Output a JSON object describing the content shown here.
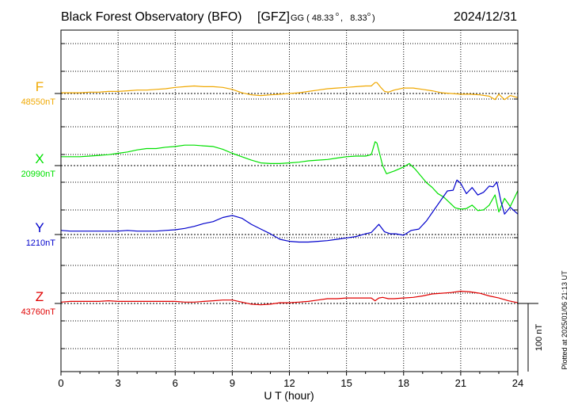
{
  "chart_data": {
    "type": "line",
    "title": "Black Forest Observatory (BFO)",
    "agency": "[GFZ]",
    "coords_prefix": "GG ( 48.33",
    "coords_mid": ",   8.33",
    "coords_suffix": ")",
    "degree_symbol": "o",
    "date": "2024/12/31",
    "xlabel": "U T (hour)",
    "xlim": [
      0,
      24
    ],
    "xticks": [
      "0",
      "3",
      "6",
      "9",
      "12",
      "15",
      "18",
      "21",
      "24"
    ],
    "scale_label": "100 nT",
    "scale_nT": 100,
    "plotted_note": "Plotted at 2025/01/06 21:13 UT",
    "series": [
      {
        "name": "F",
        "base_label": "48550nT",
        "baseline_nT": 48550,
        "color": "#f0a800",
        "hours": [
          0,
          0.5,
          1,
          1.5,
          2,
          2.5,
          3,
          3.5,
          4,
          4.5,
          5,
          5.5,
          6,
          6.5,
          7,
          7.5,
          8,
          8.5,
          9,
          9.5,
          10,
          10.5,
          11,
          11.5,
          12,
          12.5,
          13,
          13.5,
          14,
          14.5,
          15,
          15.5,
          16,
          16.3,
          16.5,
          16.6,
          16.8,
          17,
          17.2,
          17.5,
          18,
          18.5,
          19,
          19.5,
          20,
          20.5,
          21,
          21.5,
          22,
          22.5,
          22.8,
          23,
          23.3,
          23.6,
          24
        ],
        "values": [
          48551,
          48551,
          48551,
          48552,
          48552,
          48553,
          48553,
          48554,
          48555,
          48555,
          48556,
          48557,
          48559,
          48560,
          48561,
          48560,
          48560,
          48559,
          48556,
          48551,
          48548,
          48547,
          48548,
          48549,
          48550,
          48551,
          48553,
          48555,
          48557,
          48558,
          48559,
          48560,
          48561,
          48561,
          48566,
          48566,
          48559,
          48553,
          48552,
          48555,
          48558,
          48558,
          48556,
          48554,
          48551,
          48550,
          48549,
          48549,
          48548,
          48546,
          48541,
          48549,
          48541,
          48547,
          48544
        ]
      },
      {
        "name": "X",
        "base_label": "20990nT",
        "baseline_nT": 20990,
        "color": "#00e000",
        "hours": [
          0,
          0.5,
          1,
          1.5,
          2,
          2.5,
          3,
          3.5,
          4,
          4.5,
          5,
          5.5,
          6,
          6.5,
          7,
          7.5,
          8,
          8.5,
          9,
          9.5,
          10,
          10.5,
          11,
          11.5,
          12,
          12.5,
          13,
          13.5,
          14,
          14.5,
          15,
          15.5,
          16,
          16.3,
          16.5,
          16.6,
          16.7,
          16.9,
          17.1,
          17.5,
          18,
          18.3,
          18.6,
          18.9,
          19.2,
          19.5,
          19.8,
          20.1,
          20.4,
          20.7,
          21,
          21.3,
          21.6,
          21.9,
          22.2,
          22.5,
          22.8,
          23,
          23.3,
          23.6,
          24
        ],
        "values": [
          21003,
          21003,
          21003,
          21004,
          21005,
          21006,
          21008,
          21010,
          21013,
          21015,
          21015,
          21017,
          21018,
          21020,
          21020,
          21019,
          21018,
          21014,
          21008,
          21003,
          20998,
          20994,
          20993,
          20993,
          20994,
          20995,
          20997,
          20998,
          20999,
          21001,
          21003,
          21004,
          21004,
          21006,
          21025,
          21023,
          21012,
          20990,
          20978,
          20982,
          20988,
          20993,
          20985,
          20975,
          20965,
          20958,
          20949,
          20944,
          20936,
          20928,
          20926,
          20927,
          20932,
          20924,
          20925,
          20932,
          20947,
          20922,
          20942,
          20930,
          20953
        ]
      },
      {
        "name": "Y",
        "base_label": "1210nT",
        "baseline_nT": 1210,
        "color": "#0000cc",
        "hours": [
          0,
          0.5,
          1,
          1.5,
          2,
          2.5,
          3,
          3.5,
          4,
          4.5,
          5,
          5.5,
          6,
          6.5,
          7,
          7.5,
          8,
          8.5,
          9,
          9.5,
          10,
          10.5,
          11,
          11.5,
          12,
          12.5,
          13,
          13.5,
          14,
          14.5,
          15,
          15.5,
          16,
          16.3,
          16.5,
          16.7,
          17,
          17.3,
          17.6,
          18,
          18.4,
          18.8,
          19.2,
          19.6,
          20,
          20.3,
          20.6,
          20.8,
          21,
          21.3,
          21.6,
          21.9,
          22.2,
          22.5,
          22.7,
          22.9,
          23.1,
          23.3,
          23.6,
          24
        ],
        "values": [
          1216,
          1215,
          1215,
          1215,
          1215,
          1215,
          1215,
          1216,
          1215,
          1215,
          1215,
          1216,
          1217,
          1219,
          1222,
          1226,
          1229,
          1235,
          1238,
          1234,
          1225,
          1218,
          1211,
          1203,
          1200,
          1199,
          1199,
          1200,
          1201,
          1203,
          1205,
          1207,
          1211,
          1213,
          1219,
          1225,
          1214,
          1211,
          1211,
          1209,
          1216,
          1218,
          1230,
          1246,
          1262,
          1274,
          1275,
          1290,
          1285,
          1270,
          1279,
          1268,
          1272,
          1281,
          1280,
          1287,
          1260,
          1240,
          1250,
          1240
        ]
      },
      {
        "name": "Z",
        "base_label": "43760nT",
        "baseline_nT": 43760,
        "color": "#e00000",
        "hours": [
          0,
          0.5,
          1,
          1.5,
          2,
          2.5,
          3,
          3.5,
          4,
          4.5,
          5,
          5.5,
          6,
          6.5,
          7,
          7.5,
          8,
          8.5,
          9,
          9.5,
          10,
          10.5,
          11,
          11.5,
          12,
          12.5,
          13,
          13.5,
          14,
          14.5,
          15,
          15.5,
          16,
          16.3,
          16.5,
          16.7,
          16.9,
          17.2,
          17.5,
          18,
          18.5,
          19,
          19.5,
          20,
          20.5,
          21,
          21.5,
          22,
          22.5,
          23,
          23.5,
          24
        ],
        "values": [
          43762,
          43763,
          43763,
          43763,
          43763,
          43764,
          43763,
          43763,
          43763,
          43763,
          43763,
          43763,
          43763,
          43762,
          43762,
          43763,
          43764,
          43765,
          43765,
          43762,
          43759,
          43758,
          43759,
          43761,
          43761,
          43762,
          43763,
          43765,
          43767,
          43767,
          43768,
          43768,
          43768,
          43768,
          43764,
          43768,
          43769,
          43767,
          43767,
          43768,
          43769,
          43771,
          43774,
          43775,
          43776,
          43778,
          43777,
          43775,
          43771,
          43768,
          43764,
          43761
        ]
      }
    ]
  }
}
